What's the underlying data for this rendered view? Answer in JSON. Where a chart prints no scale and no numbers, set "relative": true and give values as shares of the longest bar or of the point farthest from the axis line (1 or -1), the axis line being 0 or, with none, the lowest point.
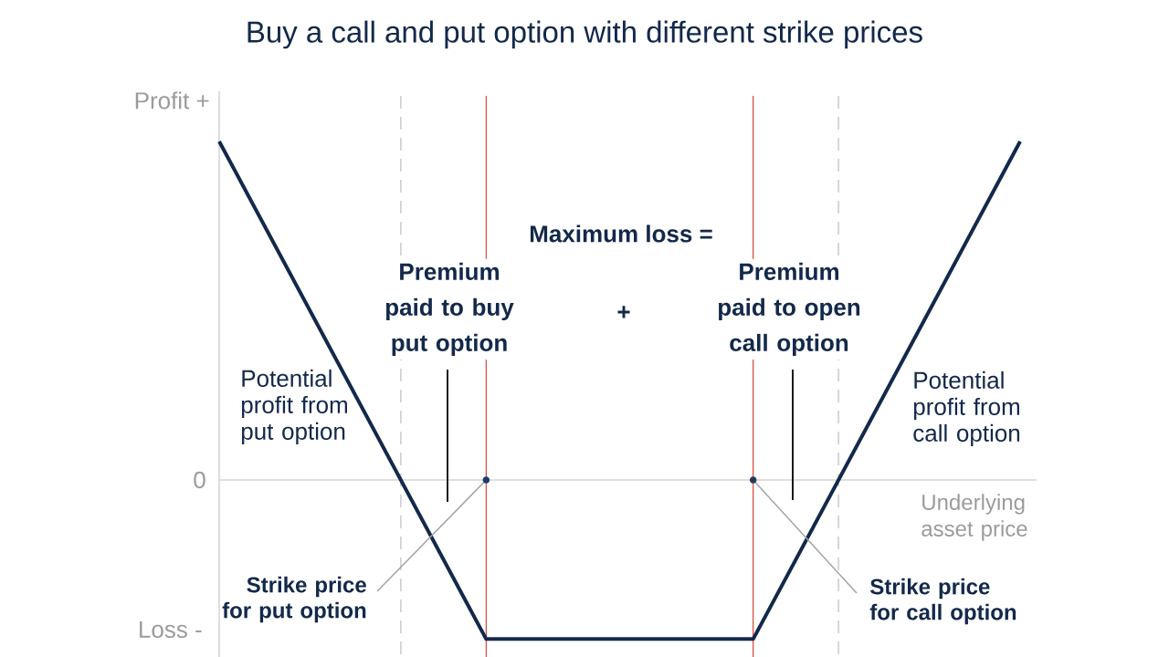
{
  "chart_data": {
    "type": "line",
    "title": "Buy a call and put option with different strike prices",
    "relative": true,
    "categories": [
      null,
      null,
      null,
      null
    ],
    "series": [
      {
        "color": "#13294b",
        "values": [
          1,
          -0.47,
          -0.47,
          1
        ]
      }
    ],
    "annotations": [
      "Profit +",
      "0",
      "Loss -",
      "Maximum loss =",
      "Premium paid to buy put option",
      "+",
      "Premium paid to open call option",
      "Potential profit from put option",
      "Potential profit from call option",
      "Strike price for put option",
      "Strike price for call option",
      "Underlying asset price"
    ]
  }
}
